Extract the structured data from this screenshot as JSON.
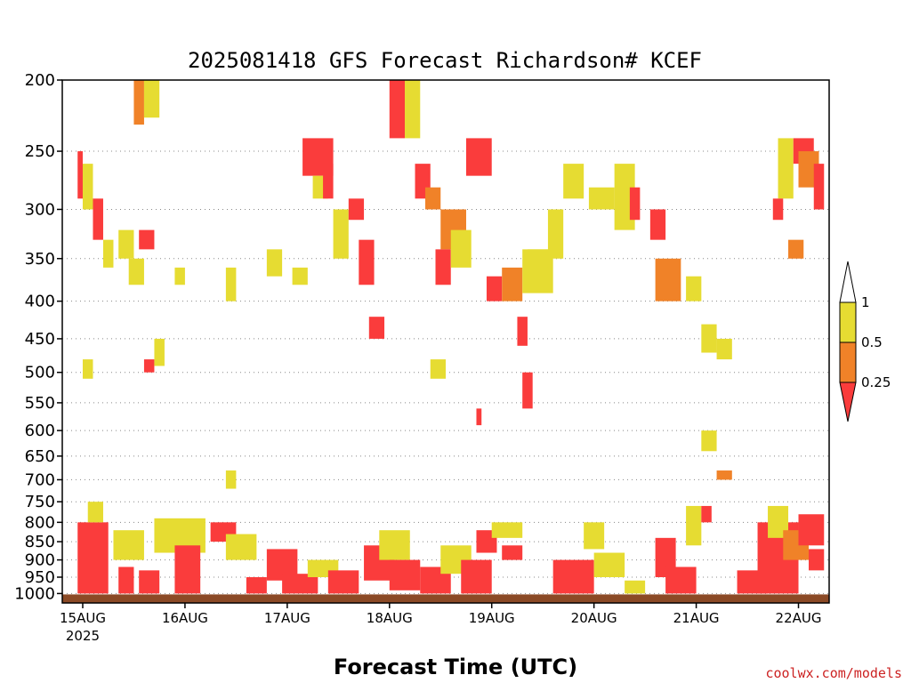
{
  "chart_data": {
    "type": "heatmap",
    "title": "2025081418 GFS Forecast Richardson# KCEF",
    "xlabel": "Forecast Time (UTC)",
    "ylabel": "",
    "credit": "coolwx.com/models",
    "y_scale": "log",
    "yticks": [
      200,
      250,
      300,
      350,
      400,
      450,
      500,
      550,
      600,
      650,
      700,
      750,
      800,
      850,
      900,
      950,
      1000
    ],
    "ylim": [
      1030,
      200
    ],
    "xlim": [
      -0.2,
      7.3
    ],
    "xticks": [
      {
        "day": 0,
        "label": "15AUG",
        "sublabel": "2025"
      },
      {
        "day": 1,
        "label": "16AUG",
        "sublabel": ""
      },
      {
        "day": 2,
        "label": "17AUG",
        "sublabel": ""
      },
      {
        "day": 3,
        "label": "18AUG",
        "sublabel": ""
      },
      {
        "day": 4,
        "label": "19AUG",
        "sublabel": ""
      },
      {
        "day": 5,
        "label": "20AUG",
        "sublabel": ""
      },
      {
        "day": 6,
        "label": "21AUG",
        "sublabel": ""
      },
      {
        "day": 7,
        "label": "22AUG",
        "sublabel": ""
      }
    ],
    "grid": "dotted-horizontal",
    "legend": {
      "placement": "right",
      "labels": [
        "1",
        "0.5",
        "0.25"
      ],
      "bins": [
        {
          "range": "> 1",
          "color": "#ffffff"
        },
        {
          "range": "0.5 – 1",
          "color": "#e6dc32"
        },
        {
          "range": "0.25 – 0.5",
          "color": "#f08228"
        },
        {
          "range": "< 0.25",
          "color": "#fa3c3c"
        }
      ]
    },
    "colors": {
      "low": "#fa3c3c",
      "mid": "#f08228",
      "high": "#e6dc32",
      "ground": "#8b4a26"
    },
    "cells_note": "cells: [day_start, day_end, p_top_hPa, p_bottom_hPa, class] class 1=<0.25, 2=0.25-0.5, 3=0.5-1",
    "cells": [
      [
        -0.05,
        0.25,
        800,
        1000,
        1
      ],
      [
        0.05,
        0.2,
        750,
        800,
        3
      ],
      [
        0.3,
        0.6,
        820,
        900,
        3
      ],
      [
        0.35,
        0.5,
        920,
        1000,
        1
      ],
      [
        0.55,
        0.75,
        930,
        1000,
        1
      ],
      [
        0.7,
        1.2,
        790,
        880,
        3
      ],
      [
        0.9,
        1.15,
        860,
        1000,
        1
      ],
      [
        1.25,
        1.5,
        800,
        850,
        1
      ],
      [
        1.4,
        1.7,
        830,
        900,
        3
      ],
      [
        1.6,
        1.8,
        950,
        1000,
        1
      ],
      [
        1.8,
        2.1,
        870,
        960,
        1
      ],
      [
        1.95,
        2.3,
        940,
        1000,
        1
      ],
      [
        2.2,
        2.5,
        900,
        950,
        3
      ],
      [
        2.4,
        2.7,
        930,
        1000,
        1
      ],
      [
        2.75,
        3.05,
        860,
        960,
        1
      ],
      [
        2.9,
        3.2,
        820,
        900,
        3
      ],
      [
        3.0,
        3.3,
        900,
        990,
        1
      ],
      [
        3.3,
        3.6,
        920,
        1000,
        1
      ],
      [
        3.5,
        3.8,
        860,
        940,
        3
      ],
      [
        3.7,
        4.0,
        900,
        1000,
        1
      ],
      [
        3.85,
        4.05,
        820,
        880,
        1
      ],
      [
        4.0,
        4.3,
        800,
        840,
        3
      ],
      [
        4.1,
        4.3,
        860,
        900,
        1
      ],
      [
        4.6,
        5.0,
        900,
        1000,
        1
      ],
      [
        4.9,
        5.1,
        800,
        870,
        3
      ],
      [
        5.0,
        5.3,
        880,
        950,
        3
      ],
      [
        5.3,
        5.5,
        960,
        1000,
        3
      ],
      [
        5.6,
        5.8,
        840,
        950,
        1
      ],
      [
        5.7,
        6.0,
        920,
        1000,
        1
      ],
      [
        5.9,
        6.05,
        760,
        860,
        3
      ],
      [
        6.05,
        6.15,
        760,
        800,
        1
      ],
      [
        6.4,
        6.7,
        930,
        1000,
        1
      ],
      [
        6.6,
        7.0,
        800,
        1000,
        1
      ],
      [
        6.7,
        6.9,
        760,
        840,
        3
      ],
      [
        6.85,
        7.1,
        820,
        900,
        2
      ],
      [
        7.0,
        7.25,
        780,
        860,
        1
      ],
      [
        7.1,
        7.25,
        870,
        930,
        1
      ],
      [
        -0.05,
        0.0,
        250,
        290,
        1
      ],
      [
        0.0,
        0.1,
        260,
        300,
        3
      ],
      [
        0.1,
        0.2,
        290,
        330,
        1
      ],
      [
        0.5,
        0.6,
        200,
        230,
        2
      ],
      [
        0.6,
        0.75,
        200,
        225,
        3
      ],
      [
        0.55,
        0.7,
        320,
        340,
        1
      ],
      [
        0.45,
        0.6,
        350,
        380,
        3
      ],
      [
        0.6,
        0.7,
        480,
        500,
        1
      ],
      [
        0.7,
        0.8,
        450,
        490,
        3
      ],
      [
        0.0,
        0.1,
        480,
        510,
        3
      ],
      [
        2.05,
        2.2,
        360,
        380,
        3
      ],
      [
        2.15,
        2.45,
        240,
        270,
        1
      ],
      [
        2.25,
        2.4,
        270,
        290,
        3
      ],
      [
        2.35,
        2.45,
        260,
        290,
        1
      ],
      [
        2.45,
        2.6,
        300,
        350,
        3
      ],
      [
        2.6,
        2.75,
        290,
        310,
        1
      ],
      [
        2.7,
        2.85,
        330,
        380,
        1
      ],
      [
        2.8,
        2.95,
        420,
        450,
        1
      ],
      [
        3.0,
        3.15,
        200,
        240,
        1
      ],
      [
        3.15,
        3.3,
        200,
        240,
        3
      ],
      [
        3.25,
        3.4,
        260,
        290,
        1
      ],
      [
        3.35,
        3.5,
        280,
        300,
        2
      ],
      [
        3.5,
        3.75,
        300,
        340,
        2
      ],
      [
        3.45,
        3.6,
        340,
        380,
        1
      ],
      [
        3.6,
        3.8,
        320,
        360,
        3
      ],
      [
        3.75,
        4.0,
        240,
        270,
        1
      ],
      [
        3.95,
        4.1,
        370,
        400,
        1
      ],
      [
        4.1,
        4.3,
        360,
        400,
        2
      ],
      [
        4.3,
        4.6,
        340,
        390,
        3
      ],
      [
        4.55,
        4.7,
        300,
        350,
        3
      ],
      [
        4.7,
        4.9,
        260,
        290,
        3
      ],
      [
        4.95,
        5.2,
        280,
        300,
        3
      ],
      [
        5.2,
        5.4,
        260,
        320,
        3
      ],
      [
        5.35,
        5.45,
        280,
        310,
        1
      ],
      [
        5.55,
        5.7,
        300,
        330,
        1
      ],
      [
        5.6,
        5.85,
        350,
        400,
        2
      ],
      [
        5.9,
        6.05,
        370,
        400,
        3
      ],
      [
        6.05,
        6.2,
        430,
        470,
        3
      ],
      [
        6.2,
        6.35,
        450,
        480,
        3
      ],
      [
        6.05,
        6.2,
        600,
        640,
        3
      ],
      [
        6.2,
        6.35,
        680,
        700,
        2
      ],
      [
        6.8,
        6.95,
        240,
        290,
        3
      ],
      [
        6.95,
        7.15,
        240,
        260,
        1
      ],
      [
        7.0,
        7.2,
        250,
        280,
        2
      ],
      [
        7.15,
        7.25,
        260,
        300,
        1
      ],
      [
        6.75,
        6.85,
        290,
        310,
        1
      ],
      [
        6.9,
        7.05,
        330,
        350,
        2
      ],
      [
        4.25,
        4.35,
        420,
        460,
        1
      ],
      [
        4.3,
        4.4,
        500,
        560,
        1
      ],
      [
        3.85,
        3.9,
        560,
        590,
        1
      ],
      [
        3.4,
        3.55,
        480,
        510,
        3
      ],
      [
        1.4,
        1.5,
        680,
        720,
        3
      ],
      [
        0.9,
        1.0,
        360,
        380,
        3
      ],
      [
        1.4,
        1.5,
        360,
        400,
        3
      ],
      [
        1.8,
        1.95,
        340,
        370,
        3
      ],
      [
        4.35,
        4.55,
        340,
        360,
        3
      ],
      [
        0.2,
        0.3,
        330,
        360,
        3
      ],
      [
        0.35,
        0.5,
        320,
        350,
        3
      ]
    ]
  }
}
